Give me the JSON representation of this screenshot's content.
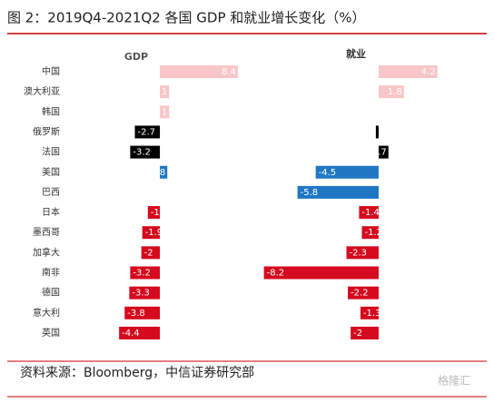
{
  "title": "图 2：2019Q4-2021Q2 各国 GDP 和就业增长变化（%）",
  "source": "资料来源：Bloomberg，中信证券研究部",
  "watermark": "格隆汇",
  "chart_data": [
    {
      "type": "bar",
      "orientation": "horizontal",
      "title": "GDP",
      "categories": [
        "中国",
        "澳大利亚",
        "韩国",
        "俄罗斯",
        "法国",
        "美国",
        "巴西",
        "日本",
        "墨西哥",
        "加拿大",
        "南非",
        "德国",
        "意大利",
        "英国"
      ],
      "values": [
        8.4,
        1,
        1,
        -2.7,
        -3.2,
        0.8,
        0,
        -1.3,
        -1.9,
        -2,
        -3.2,
        -3.3,
        -3.8,
        -4.4
      ],
      "colors": [
        "#f8c6c8",
        "#f8c6c8",
        "#f8c6c8",
        "#000000",
        "#000000",
        "#1f77c4",
        "#1f77c4",
        "#d50a1e",
        "#d50a1e",
        "#d50a1e",
        "#d50a1e",
        "#d50a1e",
        "#d50a1e",
        "#d50a1e"
      ],
      "xlim": [
        -5,
        9
      ]
    },
    {
      "type": "bar",
      "orientation": "horizontal",
      "title": "就业",
      "values": [
        4.2,
        1.8,
        0,
        -0.2,
        0.7,
        -4.5,
        -5.8,
        -1.4,
        -1.2,
        -2.3,
        -8.2,
        -2.2,
        -1.3,
        -2
      ],
      "colors": [
        "#f8c6c8",
        "#f8c6c8",
        "#f8c6c8",
        "#000000",
        "#000000",
        "#1f77c4",
        "#1f77c4",
        "#d50a1e",
        "#d50a1e",
        "#d50a1e",
        "#d50a1e",
        "#d50a1e",
        "#d50a1e",
        "#d50a1e"
      ],
      "xlim": [
        -8.5,
        5
      ]
    }
  ]
}
